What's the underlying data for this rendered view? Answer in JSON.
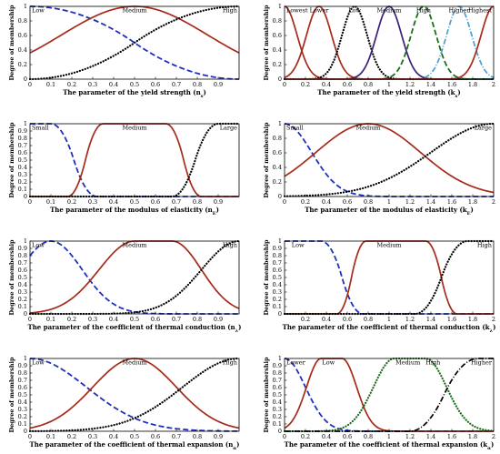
{
  "colors": {
    "red": "#a52a1a",
    "blue": "#1f2fbf",
    "black": "#000000",
    "navy": "#3b1f78",
    "green": "#1a6e1a",
    "cyan": "#4a9fd0"
  },
  "chart_data": [
    {
      "type": "line",
      "xlabel": "The parameter of the yield strength (n",
      "xsub": "s",
      "ylabel": "Degree of membership",
      "xlim": [
        0,
        1
      ],
      "ylim": [
        0,
        1
      ],
      "xticks": [
        "0",
        "0.1",
        "0.2",
        "0.3",
        "0.4",
        "0.5",
        "0.6",
        "0.7",
        "0.8",
        "0.9"
      ],
      "xtickvals": [
        0,
        0.1,
        0.2,
        0.3,
        0.4,
        0.5,
        0.6,
        0.7,
        0.8,
        0.9
      ],
      "yticks": [
        "0",
        "0.2",
        "0.4",
        "0.6",
        "0.8",
        "1"
      ],
      "ytickvals": [
        0,
        0.2,
        0.4,
        0.6,
        0.8,
        1
      ],
      "labels": [
        {
          "text": "Low",
          "x": 0.0,
          "anchor": "start"
        },
        {
          "text": "Medium",
          "x": 0.5,
          "anchor": "middle"
        },
        {
          "text": "High",
          "x": 1.0,
          "anchor": "end"
        }
      ],
      "series": [
        {
          "f": "zmf",
          "p": [
            0,
            1
          ],
          "style": "blue-dash"
        },
        {
          "f": "gauss",
          "p": [
            0.5,
            0.35
          ],
          "style": "red-solid"
        },
        {
          "f": "smf",
          "p": [
            0,
            1
          ],
          "style": "black-dot"
        }
      ]
    },
    {
      "type": "line",
      "xlabel": "The parameter of the yield strength (k",
      "xsub": "s",
      "ylabel": "Degree of membership",
      "xlim": [
        0,
        2
      ],
      "ylim": [
        0,
        1
      ],
      "xticks": [
        "0",
        "0.2",
        "0.4",
        "0.6",
        "0.8",
        "1",
        "1.2",
        "1.4",
        "1.6",
        "1.8",
        "2"
      ],
      "xtickvals": [
        0,
        0.2,
        0.4,
        0.6,
        0.8,
        1,
        1.2,
        1.4,
        1.6,
        1.8,
        2
      ],
      "yticks": [
        "0",
        "0.2",
        "0.4",
        "0.6",
        "0.8",
        "1"
      ],
      "ytickvals": [
        0,
        0.2,
        0.4,
        0.6,
        0.8,
        1
      ],
      "labels": [
        {
          "text": "Lowest",
          "x": 0.0,
          "anchor": "start"
        },
        {
          "text": "Lower",
          "x": 0.33,
          "anchor": "middle"
        },
        {
          "text": "Low",
          "x": 0.67,
          "anchor": "middle"
        },
        {
          "text": "Medium",
          "x": 1.0,
          "anchor": "middle"
        },
        {
          "text": "High",
          "x": 1.33,
          "anchor": "middle"
        },
        {
          "text": "Higher",
          "x": 1.67,
          "anchor": "middle"
        },
        {
          "text": "Highest",
          "x": 2.0,
          "anchor": "end"
        }
      ],
      "series": [
        {
          "f": "gauss",
          "p": [
            0,
            0.12
          ],
          "style": "red-solid"
        },
        {
          "f": "gauss",
          "p": [
            0.33,
            0.12
          ],
          "style": "red-solid"
        },
        {
          "f": "gauss",
          "p": [
            0.67,
            0.12
          ],
          "style": "black-dot"
        },
        {
          "f": "gauss",
          "p": [
            1.0,
            0.12
          ],
          "style": "navy-solid"
        },
        {
          "f": "gauss",
          "p": [
            1.33,
            0.12
          ],
          "style": "green-dash"
        },
        {
          "f": "gauss",
          "p": [
            1.67,
            0.12
          ],
          "style": "cyan-dashdot"
        },
        {
          "f": "gauss",
          "p": [
            2.0,
            0.12
          ],
          "style": "red-solid"
        }
      ]
    },
    {
      "type": "line",
      "xlabel": "The parameter of the modulus of elasticity (n",
      "xsub": "E",
      "ylabel": "Degree of membership",
      "xlim": [
        0,
        1
      ],
      "ylim": [
        0,
        1
      ],
      "xticks": [
        "0",
        "0.1",
        "0.2",
        "0.3",
        "0.4",
        "0.5",
        "0.6",
        "0.7",
        "0.8",
        "0.9"
      ],
      "xtickvals": [
        0,
        0.1,
        0.2,
        0.3,
        0.4,
        0.5,
        0.6,
        0.7,
        0.8,
        0.9
      ],
      "yticks": [
        "0",
        "0.1",
        "0.2",
        "0.3",
        "0.4",
        "0.5",
        "0.6",
        "0.7",
        "0.8",
        "0.9",
        "1"
      ],
      "ytickvals": [
        0,
        0.1,
        0.2,
        0.3,
        0.4,
        0.5,
        0.6,
        0.7,
        0.8,
        0.9,
        1
      ],
      "labels": [
        {
          "text": "Small",
          "x": 0.0,
          "anchor": "start"
        },
        {
          "text": "Medium",
          "x": 0.5,
          "anchor": "middle"
        },
        {
          "text": "Large",
          "x": 1.0,
          "anchor": "end"
        }
      ],
      "series": [
        {
          "f": "zmf",
          "p": [
            0.1,
            0.32
          ],
          "style": "blue-dash"
        },
        {
          "f": "trap",
          "p": [
            0.18,
            0.35,
            0.65,
            0.82
          ],
          "style": "red-solid"
        },
        {
          "f": "smf",
          "p": [
            0.68,
            0.9
          ],
          "style": "black-dot"
        }
      ]
    },
    {
      "type": "line",
      "xlabel": "The parameter of the modulus of elasticity (k",
      "xsub": "E",
      "ylabel": "Degree of membership",
      "xlim": [
        0,
        2
      ],
      "ylim": [
        0,
        1
      ],
      "xticks": [
        "0",
        "0.2",
        "0.4",
        "0.6",
        "0.8",
        "1",
        "1.2",
        "1.4",
        "1.6",
        "1.8",
        "2"
      ],
      "xtickvals": [
        0,
        0.2,
        0.4,
        0.6,
        0.8,
        1,
        1.2,
        1.4,
        1.6,
        1.8,
        2
      ],
      "yticks": [
        "0",
        "0.2",
        "0.4",
        "0.6",
        "0.8",
        "1"
      ],
      "ytickvals": [
        0,
        0.2,
        0.4,
        0.6,
        0.8,
        1
      ],
      "labels": [
        {
          "text": "Small",
          "x": 0.0,
          "anchor": "start"
        },
        {
          "text": "Medium",
          "x": 0.8,
          "anchor": "middle"
        },
        {
          "text": "Large",
          "x": 2.0,
          "anchor": "end"
        }
      ],
      "series": [
        {
          "f": "gauss",
          "p": [
            0,
            0.26
          ],
          "style": "blue-dash"
        },
        {
          "f": "gauss",
          "p": [
            0.8,
            0.5
          ],
          "style": "red-solid"
        },
        {
          "f": "gauss",
          "p": [
            2.0,
            0.6
          ],
          "style": "black-dot"
        }
      ]
    },
    {
      "type": "line",
      "xlabel": "The parameter of the coefficient of thermal conduction (n",
      "xsub": "λ",
      "ylabel": "Degree of membership",
      "xlim": [
        0,
        1
      ],
      "ylim": [
        0,
        1
      ],
      "xticks": [
        "0",
        "0.1",
        "0.2",
        "0.3",
        "0.4",
        "0.5",
        "0.6",
        "0.7",
        "0.8",
        "0.9"
      ],
      "xtickvals": [
        0,
        0.1,
        0.2,
        0.3,
        0.4,
        0.5,
        0.6,
        0.7,
        0.8,
        0.9
      ],
      "yticks": [
        "0",
        "0.1",
        "0.2",
        "0.3",
        "0.4",
        "0.5",
        "0.6",
        "0.7",
        "0.8",
        "0.9",
        "1"
      ],
      "ytickvals": [
        0,
        0.1,
        0.2,
        0.3,
        0.4,
        0.5,
        0.6,
        0.7,
        0.8,
        0.9,
        1
      ],
      "labels": [
        {
          "text": "Low",
          "x": 0.0,
          "anchor": "start"
        },
        {
          "text": "Medium",
          "x": 0.5,
          "anchor": "middle"
        },
        {
          "text": "High",
          "x": 1.0,
          "anchor": "end"
        }
      ],
      "series": [
        {
          "f": "gauss2",
          "p": [
            0.1,
            0.15,
            0.1,
            0.15
          ],
          "style": "blue-dash"
        },
        {
          "f": "gauss2",
          "p": [
            0.5,
            0.17,
            0.68,
            0.14
          ],
          "style": "red-solid"
        },
        {
          "f": "gauss2",
          "p": [
            1.0,
            0.18,
            1.2,
            0.1
          ],
          "style": "black-dot"
        }
      ]
    },
    {
      "type": "line",
      "xlabel": "The parameter of the coefficient of thermal conduction (k",
      "xsub": "λ",
      "ylabel": "Degree of membership",
      "xlim": [
        0,
        2
      ],
      "ylim": [
        0,
        1
      ],
      "xticks": [
        "0.2",
        "0.4",
        "0.6",
        "0.8",
        "1",
        "1.2",
        "1.4",
        "1.6",
        "1.8",
        "2"
      ],
      "xtickvals": [
        0.2,
        0.4,
        0.6,
        0.8,
        1,
        1.2,
        1.4,
        1.6,
        1.8,
        2
      ],
      "yticks": [
        "0",
        "0.1",
        "0.2",
        "0.3",
        "0.4",
        "0.5",
        "0.6",
        "0.7",
        "0.8",
        "0.9",
        "1"
      ],
      "ytickvals": [
        0,
        0.1,
        0.2,
        0.3,
        0.4,
        0.5,
        0.6,
        0.7,
        0.8,
        0.9,
        1
      ],
      "labels": [
        {
          "text": "Low",
          "x": 0.05,
          "anchor": "start"
        },
        {
          "text": "Medium",
          "x": 1.0,
          "anchor": "middle"
        },
        {
          "text": "High",
          "x": 2.0,
          "anchor": "end"
        }
      ],
      "series": [
        {
          "f": "zmf",
          "p": [
            0.35,
            0.75
          ],
          "style": "blue-dash"
        },
        {
          "f": "trap",
          "p": [
            0.5,
            0.78,
            1.35,
            1.65
          ],
          "style": "red-solid"
        },
        {
          "f": "smf",
          "p": [
            1.25,
            1.75
          ],
          "style": "black-dot"
        }
      ]
    },
    {
      "type": "line",
      "xlabel": "The parameter of the coefficient of thermal expansion (n",
      "xsub": "α",
      "ylabel": "Degree of membership",
      "xlim": [
        0,
        1
      ],
      "ylim": [
        0,
        1
      ],
      "xticks": [
        "0",
        "0.1",
        "0.2",
        "0.3",
        "0.4",
        "0.5",
        "0.6",
        "0.7",
        "0.8",
        "0.9"
      ],
      "xtickvals": [
        0,
        0.1,
        0.2,
        0.3,
        0.4,
        0.5,
        0.6,
        0.7,
        0.8,
        0.9
      ],
      "yticks": [
        "0",
        "0.1",
        "0.2",
        "0.3",
        "0.4",
        "0.5",
        "0.6",
        "0.7",
        "0.8",
        "0.9",
        "1"
      ],
      "ytickvals": [
        0,
        0.1,
        0.2,
        0.3,
        0.4,
        0.5,
        0.6,
        0.7,
        0.8,
        0.9,
        1
      ],
      "labels": [
        {
          "text": "Low",
          "x": 0.0,
          "anchor": "start"
        },
        {
          "text": "Medium",
          "x": 0.5,
          "anchor": "middle"
        },
        {
          "text": "High",
          "x": 1.0,
          "anchor": "end"
        }
      ],
      "series": [
        {
          "f": "gauss",
          "p": [
            0,
            0.27
          ],
          "style": "blue-dash"
        },
        {
          "f": "gauss",
          "p": [
            0.5,
            0.2
          ],
          "style": "red-solid"
        },
        {
          "f": "gauss",
          "p": [
            1.0,
            0.27
          ],
          "style": "black-dot"
        }
      ]
    },
    {
      "type": "line",
      "xlabel": "The parameter of the coefficient of thermal expansion (k",
      "xsub": "α",
      "ylabel": "Degree of membership",
      "xlim": [
        0,
        2
      ],
      "ylim": [
        0,
        1
      ],
      "xticks": [
        "0",
        "0.2",
        "0.4",
        "0.6",
        "0.8",
        "1",
        "1.2",
        "1.4",
        "1.6",
        "1.8",
        "2"
      ],
      "xtickvals": [
        0,
        0.2,
        0.4,
        0.6,
        0.8,
        1,
        1.2,
        1.4,
        1.6,
        1.8,
        2
      ],
      "yticks": [
        "0",
        "0.1",
        "0.2",
        "0.3",
        "0.4",
        "0.5",
        "0.6",
        "0.7",
        "0.8",
        "0.9",
        "1"
      ],
      "ytickvals": [
        0,
        0.1,
        0.2,
        0.3,
        0.4,
        0.5,
        0.6,
        0.7,
        0.8,
        0.9,
        1
      ],
      "labels": [
        {
          "text": "Lower",
          "x": 0.0,
          "anchor": "start"
        },
        {
          "text": "Low",
          "x": 0.42,
          "anchor": "middle"
        },
        {
          "text": "Medium",
          "x": 1.18,
          "anchor": "middle"
        },
        {
          "text": "High",
          "x": 1.42,
          "anchor": "middle"
        },
        {
          "text": "Higher",
          "x": 2.0,
          "anchor": "end"
        }
      ],
      "series": [
        {
          "f": "gauss",
          "p": [
            0,
            0.2
          ],
          "style": "blue-dash"
        },
        {
          "f": "gauss2",
          "p": [
            0.35,
            0.14,
            0.55,
            0.14
          ],
          "style": "red-solid"
        },
        {
          "f": "gauss2",
          "p": [
            1.05,
            0.2,
            1.35,
            0.2
          ],
          "style": "green-dot"
        },
        {
          "f": "smf",
          "p": [
            1.2,
            1.85
          ],
          "style": "black-dashdot"
        }
      ]
    }
  ]
}
